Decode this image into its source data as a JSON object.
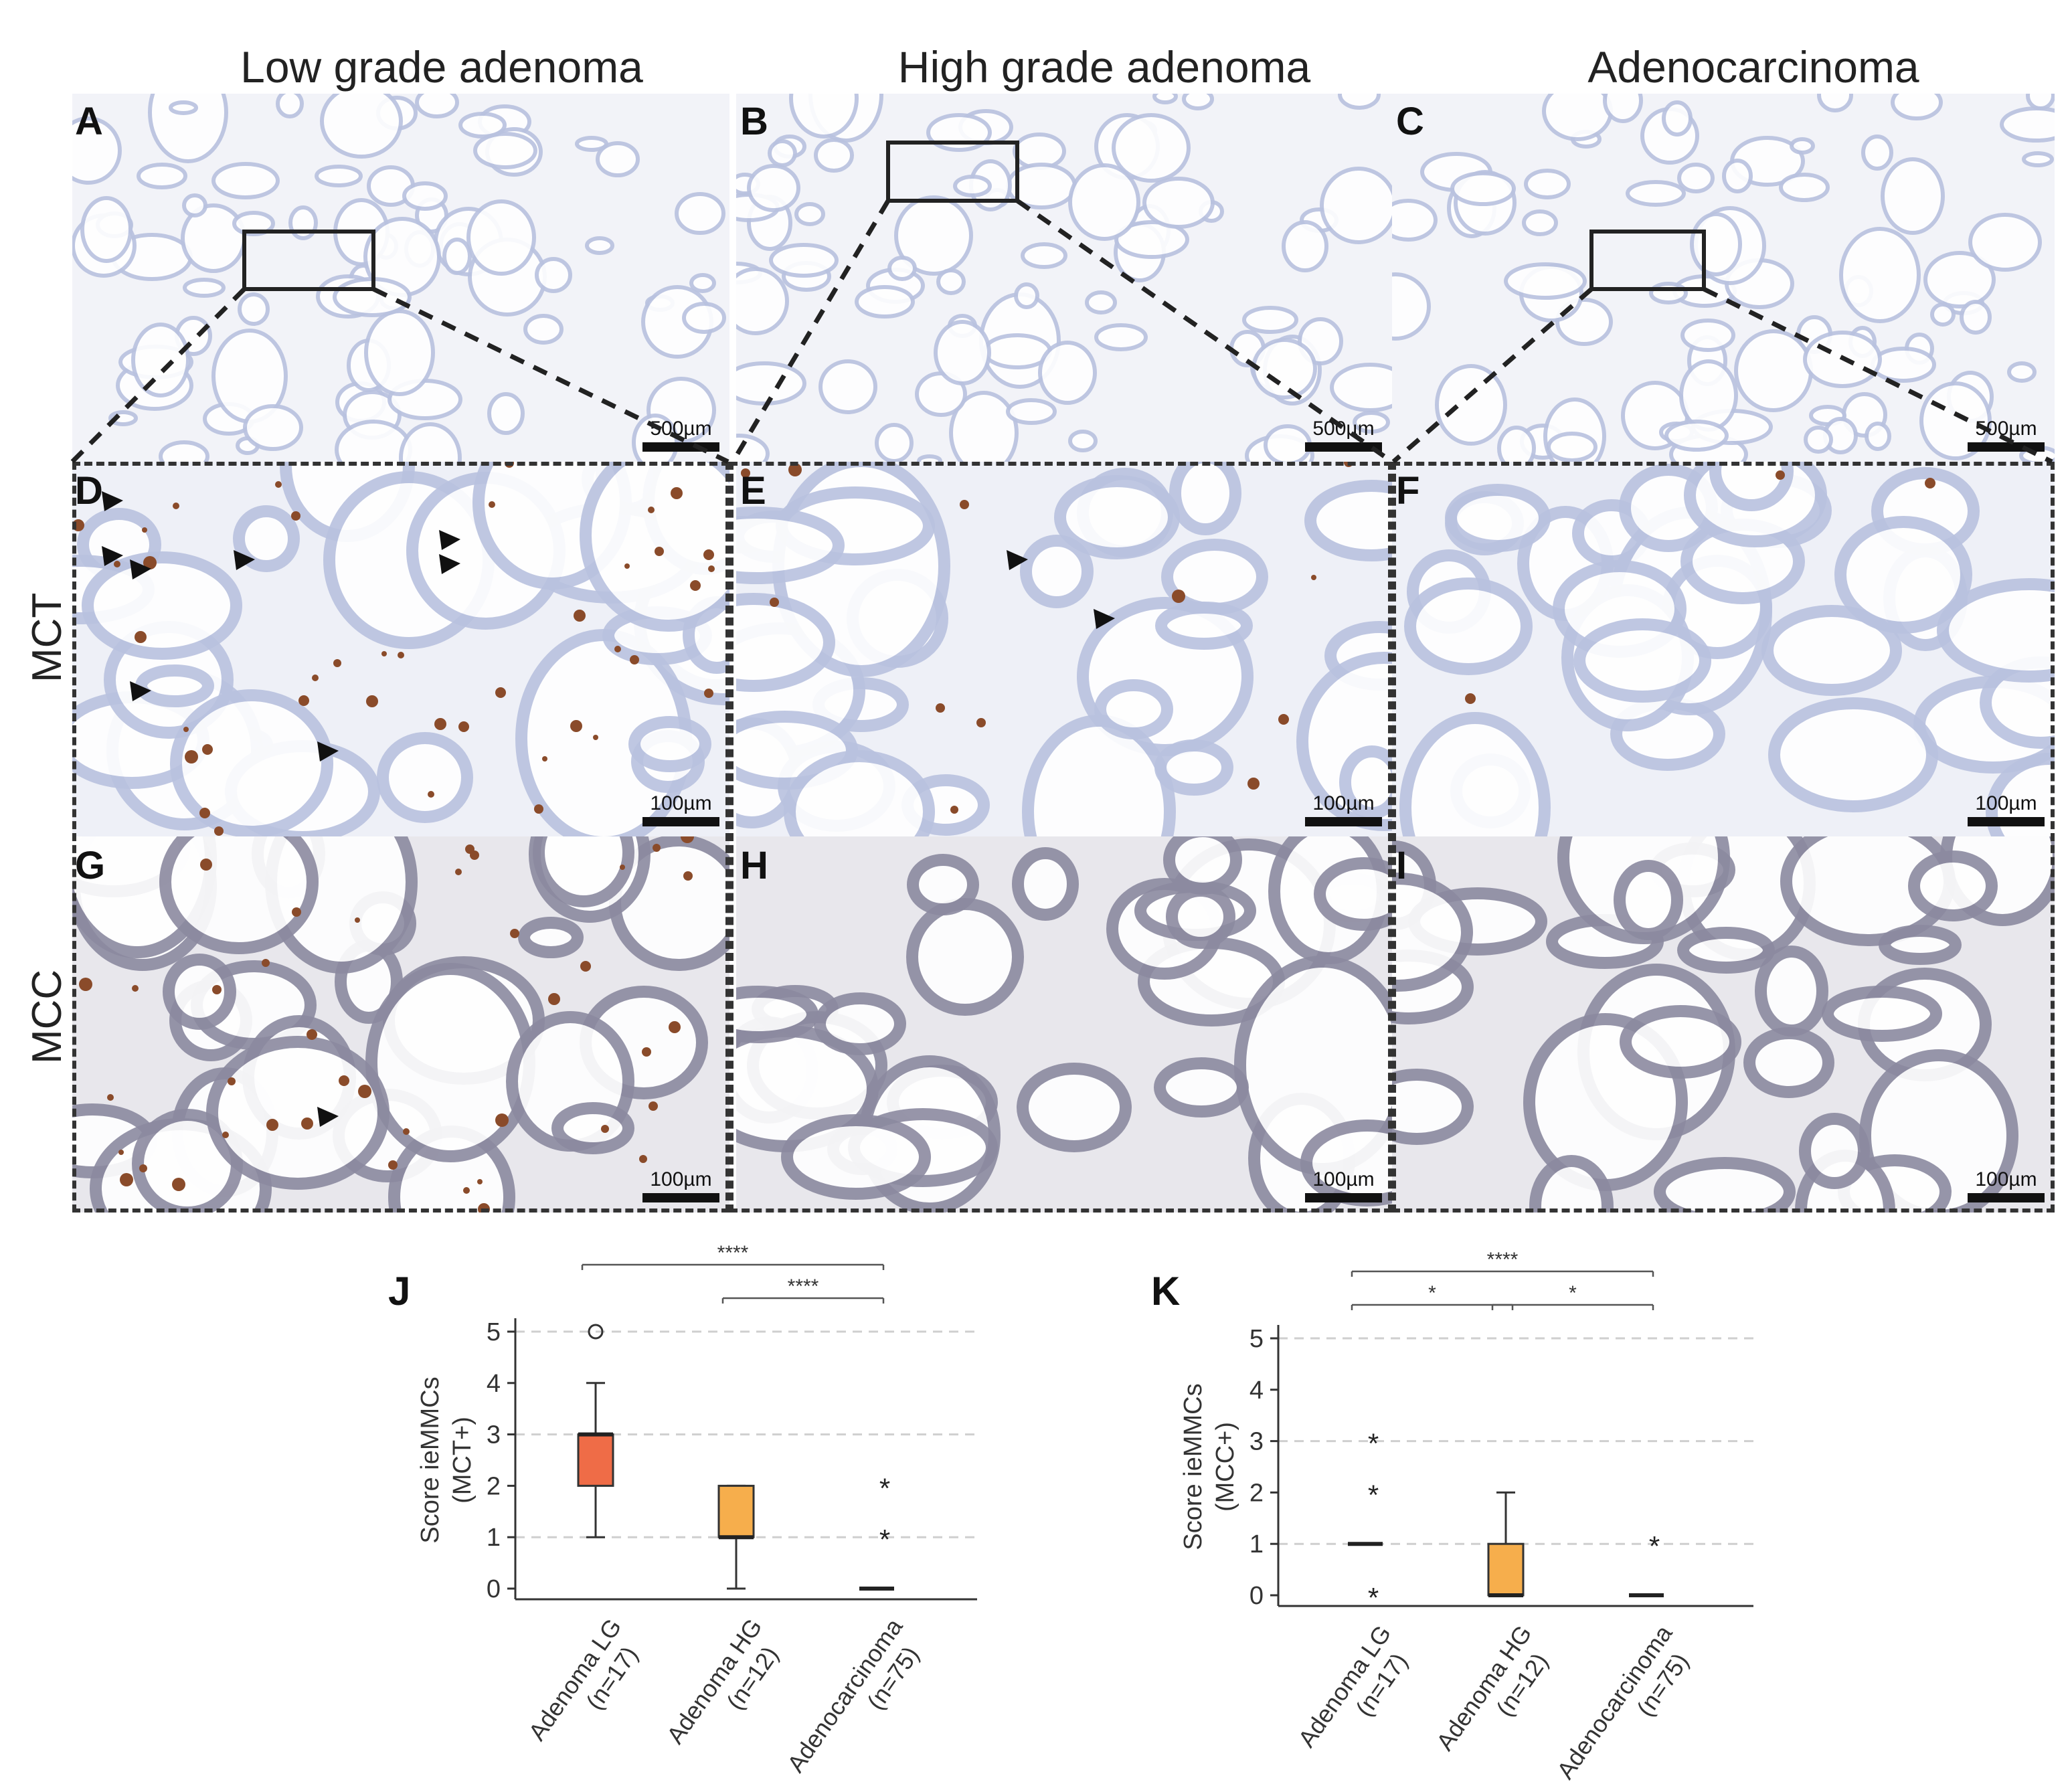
{
  "columns": [
    "Low grade adenoma",
    "High grade adenoma",
    "Adenocarcinoma"
  ],
  "rows": [
    "MCT",
    "MCC"
  ],
  "panels": [
    {
      "label": "A",
      "scale": "500µm"
    },
    {
      "label": "B",
      "scale": "500µm"
    },
    {
      "label": "C",
      "scale": "500µm"
    },
    {
      "label": "D",
      "scale": "100µm"
    },
    {
      "label": "E",
      "scale": "100µm"
    },
    {
      "label": "F",
      "scale": "100µm"
    },
    {
      "label": "G",
      "scale": "100µm"
    },
    {
      "label": "H",
      "scale": "100µm"
    },
    {
      "label": "I",
      "scale": "100µm"
    }
  ],
  "colors": {
    "tissue_blue": "#b9c2df",
    "tissue_light": "#eceff7",
    "stain_brown": "#8a4b2a",
    "mcc_gray": "#c9c9d3",
    "box_lg": "#ef6c47",
    "box_hg": "#f6ae4c"
  },
  "chart_data": [
    {
      "panel_label": "J",
      "type": "box",
      "ylabel": "Score ieMMCs (MCT+)",
      "ylim": [
        0,
        5
      ],
      "yticks": [
        0,
        1,
        2,
        3,
        4,
        5
      ],
      "grid_y": [
        1,
        3,
        5
      ],
      "categories": [
        "Adenoma LG (n=17)",
        "Adenoma HG (n=12)",
        "Adenocarcinoma (n=75)"
      ],
      "boxes": [
        {
          "whisker_low": 1,
          "q1": 2,
          "median": 3,
          "q3": 3,
          "whisker_high": 4,
          "color": "#ef6c47",
          "outliers": [
            {
              "y": 5,
              "marker": "o"
            }
          ]
        },
        {
          "whisker_low": 0,
          "q1": 1,
          "median": 1,
          "q3": 2,
          "whisker_high": 2,
          "color": "#f6ae4c",
          "outliers": []
        },
        {
          "whisker_low": 0,
          "q1": 0,
          "median": 0,
          "q3": 0,
          "whisker_high": 0,
          "color": "#f6ae4c",
          "outliers": [
            {
              "y": 1,
              "marker": "*"
            },
            {
              "y": 2,
              "marker": "*"
            }
          ]
        }
      ],
      "significance": [
        {
          "from": 0,
          "to": 2,
          "label": "****"
        },
        {
          "from": 1,
          "to": 2,
          "label": "****"
        }
      ]
    },
    {
      "panel_label": "K",
      "type": "box",
      "ylabel": "Score ieMMCs (MCC+)",
      "ylim": [
        0,
        5
      ],
      "yticks": [
        0,
        1,
        2,
        3,
        4,
        5
      ],
      "grid_y": [
        1,
        3,
        5
      ],
      "categories": [
        "Adenoma LG (n=17)",
        "Adenoma HG (n=12)",
        "Adenocarcinoma (n=75)"
      ],
      "boxes": [
        {
          "whisker_low": 1,
          "q1": 1,
          "median": 1,
          "q3": 1,
          "whisker_high": 1,
          "color": "#f6ae4c",
          "outliers": [
            {
              "y": 0,
              "marker": "*"
            },
            {
              "y": 2,
              "marker": "*"
            },
            {
              "y": 3,
              "marker": "*"
            }
          ]
        },
        {
          "whisker_low": 0,
          "q1": 0,
          "median": 0,
          "q3": 1,
          "whisker_high": 2,
          "color": "#f6ae4c",
          "outliers": []
        },
        {
          "whisker_low": 0,
          "q1": 0,
          "median": 0,
          "q3": 0,
          "whisker_high": 0,
          "color": "#f6ae4c",
          "outliers": [
            {
              "y": 1,
              "marker": "*"
            }
          ]
        }
      ],
      "significance": [
        {
          "from": 0,
          "to": 2,
          "label": "****"
        },
        {
          "from": 0,
          "to": 1,
          "label": "*"
        },
        {
          "from": 1,
          "to": 2,
          "label": "*"
        }
      ]
    }
  ]
}
